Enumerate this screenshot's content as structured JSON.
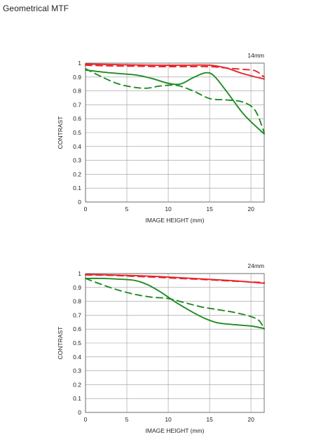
{
  "page": {
    "title": "Geometrical MTF"
  },
  "colors": {
    "sagittal_red": "#e8242a",
    "tangential_green": "#1f8b24",
    "grid": "#9a9a9a"
  },
  "chart_data": [
    {
      "type": "line",
      "title": "14mm",
      "xlabel": "IMAGE HEIGHT (mm)",
      "ylabel": "CONTRAST",
      "xlim": [
        0,
        21.6
      ],
      "ylim": [
        0,
        1
      ],
      "x_ticks": [
        0,
        5,
        10,
        15,
        20
      ],
      "y_ticks": [
        0,
        0.1,
        0.2,
        0.3,
        0.4,
        0.5,
        0.6,
        0.7,
        0.8,
        0.9,
        1
      ],
      "grid": true,
      "series": [
        {
          "color": "#e8242a",
          "style": "solid",
          "x": [
            0,
            3,
            6,
            9,
            12,
            15,
            17,
            19,
            21.6
          ],
          "y": [
            0.993,
            0.99,
            0.987,
            0.985,
            0.985,
            0.985,
            0.965,
            0.925,
            0.885
          ]
        },
        {
          "color": "#e8242a",
          "style": "dashed",
          "x": [
            0,
            3,
            6,
            9,
            12,
            15,
            17,
            19,
            20.5,
            21.6
          ],
          "y": [
            0.985,
            0.98,
            0.978,
            0.975,
            0.975,
            0.975,
            0.965,
            0.955,
            0.945,
            0.9
          ]
        },
        {
          "color": "#1f8b24",
          "style": "solid",
          "x": [
            0,
            3,
            6,
            8,
            10,
            11.5,
            13,
            14.5,
            15.5,
            17,
            19,
            20.5,
            21.6
          ],
          "y": [
            0.95,
            0.93,
            0.915,
            0.89,
            0.855,
            0.85,
            0.895,
            0.93,
            0.91,
            0.8,
            0.64,
            0.55,
            0.49
          ]
        },
        {
          "color": "#1f8b24",
          "style": "dashed",
          "x": [
            0,
            2,
            4,
            6,
            7.5,
            9,
            11,
            13,
            15,
            17,
            19,
            20.5,
            21.6
          ],
          "y": [
            0.96,
            0.9,
            0.85,
            0.825,
            0.82,
            0.835,
            0.84,
            0.8,
            0.745,
            0.735,
            0.72,
            0.66,
            0.5
          ]
        }
      ]
    },
    {
      "type": "line",
      "title": "24mm",
      "xlabel": "IMAGE HEIGHT (mm)",
      "ylabel": "CONTRAST",
      "xlim": [
        0,
        21.6
      ],
      "ylim": [
        0,
        1
      ],
      "x_ticks": [
        0,
        5,
        10,
        15,
        20
      ],
      "y_ticks": [
        0,
        0.1,
        0.2,
        0.3,
        0.4,
        0.5,
        0.6,
        0.7,
        0.8,
        0.9,
        1
      ],
      "grid": true,
      "series": [
        {
          "color": "#e8242a",
          "style": "solid",
          "x": [
            0,
            3,
            6,
            9,
            12,
            15,
            18,
            21.6
          ],
          "y": [
            0.993,
            0.99,
            0.985,
            0.978,
            0.968,
            0.958,
            0.948,
            0.93
          ]
        },
        {
          "color": "#e8242a",
          "style": "dashed",
          "x": [
            0,
            3,
            6,
            9,
            12,
            15,
            18,
            21.6
          ],
          "y": [
            0.99,
            0.987,
            0.98,
            0.972,
            0.963,
            0.955,
            0.945,
            0.935
          ]
        },
        {
          "color": "#1f8b24",
          "style": "solid",
          "x": [
            0,
            2,
            4,
            6,
            7.5,
            9,
            11,
            13,
            14.5,
            16,
            18,
            20,
            21.6
          ],
          "y": [
            0.965,
            0.965,
            0.96,
            0.95,
            0.92,
            0.87,
            0.79,
            0.72,
            0.675,
            0.645,
            0.632,
            0.622,
            0.605
          ]
        },
        {
          "color": "#1f8b24",
          "style": "dashed",
          "x": [
            0,
            2,
            4,
            6,
            8,
            10,
            12,
            14,
            16,
            18,
            20,
            21,
            21.6
          ],
          "y": [
            0.965,
            0.92,
            0.88,
            0.85,
            0.83,
            0.82,
            0.79,
            0.76,
            0.74,
            0.72,
            0.69,
            0.66,
            0.6
          ]
        }
      ]
    }
  ]
}
